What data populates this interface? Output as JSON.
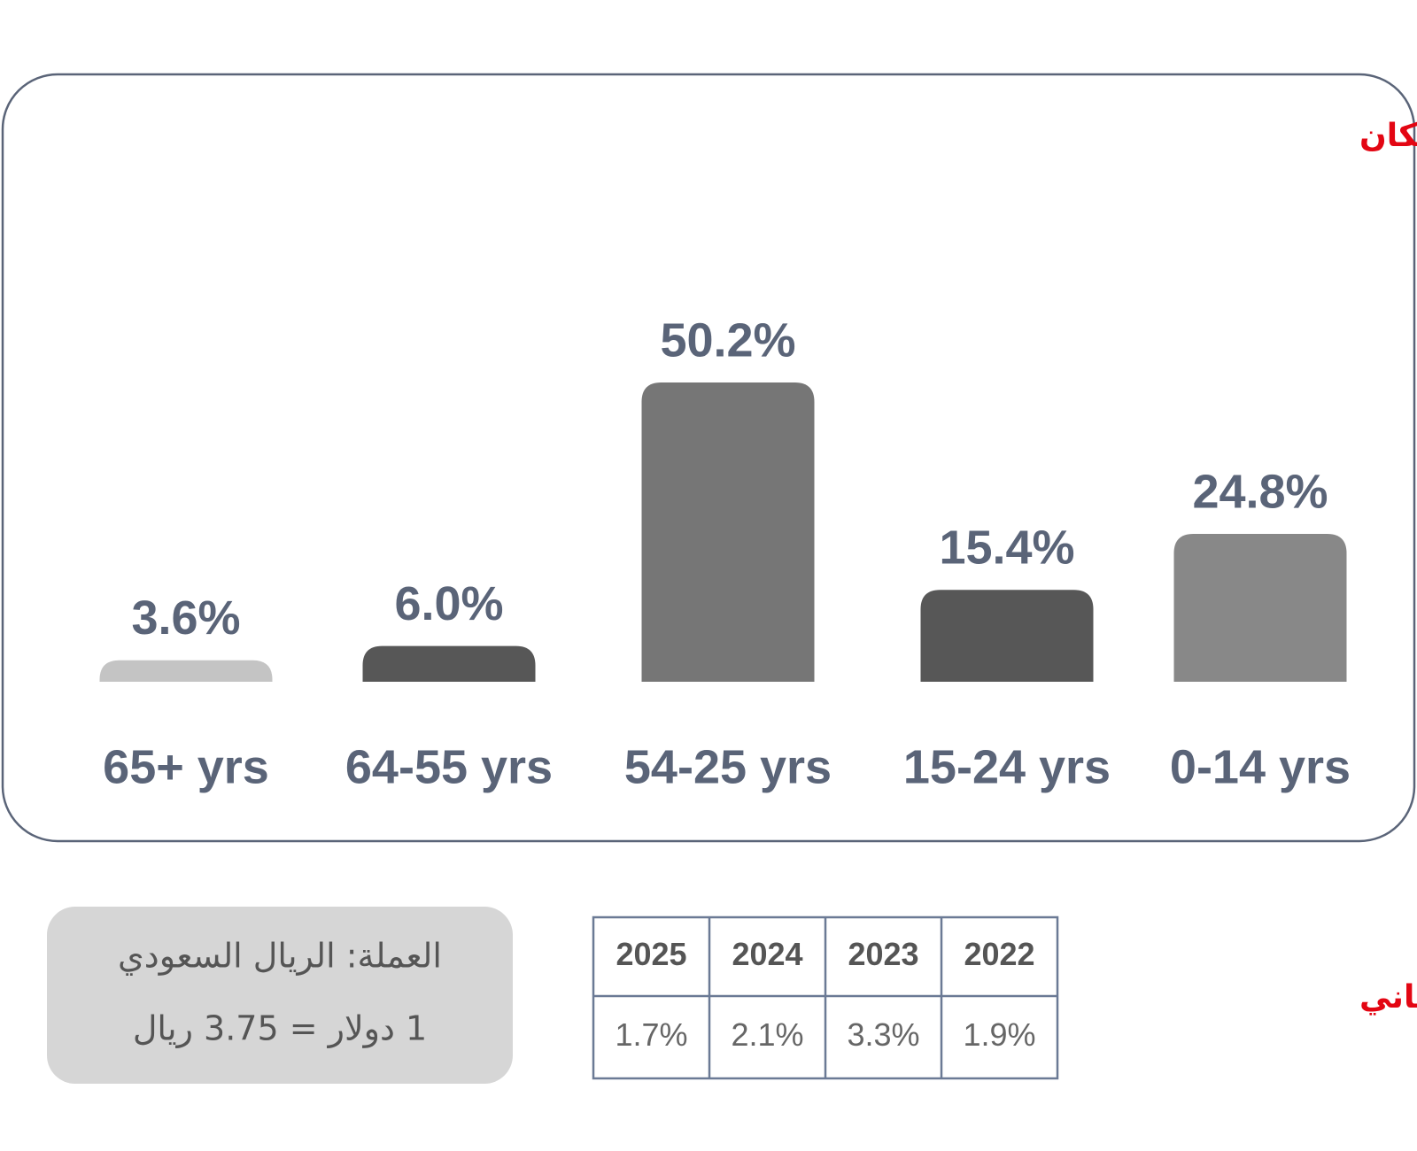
{
  "chart_data": {
    "type": "bar",
    "title": "تقسيم السكان",
    "categories": [
      "65+ yrs",
      "64-55 yrs",
      "54-25 yrs",
      "15-24 yrs",
      "0-14 yrs"
    ],
    "values": [
      3.6,
      6.0,
      50.2,
      15.4,
      24.8
    ],
    "value_labels": [
      "3.6%",
      "6.0%",
      "50.2%",
      "15.4%",
      "24.8%"
    ],
    "colors": [
      "#c4c4c4",
      "#575757",
      "#767676",
      "#575757",
      "#888888"
    ]
  },
  "growth": {
    "title": "النمو السكاني",
    "header": [
      "2022",
      "2023",
      "2024",
      "2025"
    ],
    "rows": [
      [
        "1.9%",
        "3.3%",
        "2.1%",
        "1.7%"
      ]
    ]
  },
  "note": {
    "lines": [
      "العملة: الريال السعودي",
      "1 دولار = 3.75 ريال"
    ]
  }
}
